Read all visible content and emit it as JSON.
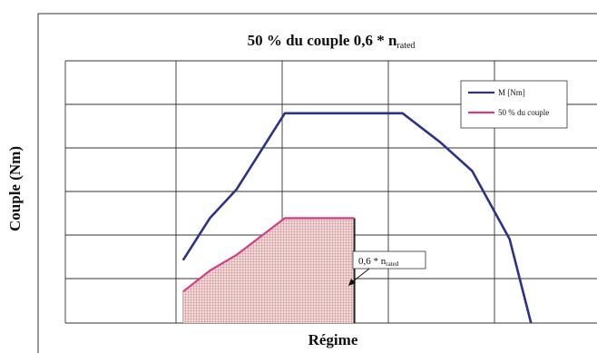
{
  "chart_data": {
    "type": "line",
    "title": {
      "main": "50 % du couple 0,6 * n",
      "subscript": "rated"
    },
    "xlabel": "Régime",
    "ylabel": "Couple (Nm)",
    "ylim": [
      0,
      100
    ],
    "xlim": [
      0,
      100
    ],
    "grid": true,
    "legend": {
      "placement": "top-right",
      "entries": [
        {
          "label": "M [Nm]",
          "color": "#2e3189"
        },
        {
          "label": "50 % du couple",
          "color": "#d63b86"
        }
      ]
    },
    "series": [
      {
        "name": "M [Nm]",
        "color": "#2e3189",
        "points": [
          [
            22,
            24
          ],
          [
            27,
            40
          ],
          [
            32,
            51
          ],
          [
            41,
            80
          ],
          [
            63,
            80
          ],
          [
            70,
            69
          ],
          [
            76,
            58
          ],
          [
            83,
            32
          ],
          [
            87,
            0
          ]
        ]
      },
      {
        "name": "50 % du couple",
        "color": "#d63b86",
        "points": [
          [
            22,
            12
          ],
          [
            27,
            20
          ],
          [
            32,
            26
          ],
          [
            41,
            40
          ],
          [
            54,
            40
          ],
          [
            54,
            0
          ]
        ]
      }
    ],
    "annotation": {
      "text": "0,6 * n",
      "subscript": "rated"
    },
    "hatch_color": "#b06060"
  }
}
